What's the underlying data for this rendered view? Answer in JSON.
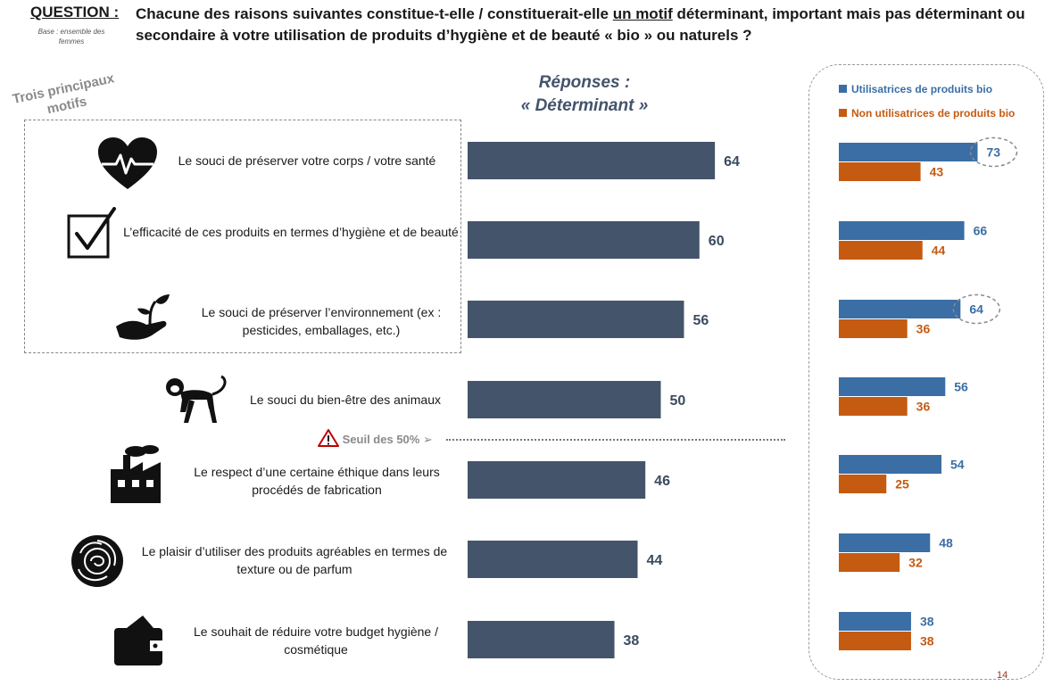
{
  "header": {
    "question_label": "QUESTION :",
    "base_note": "Base : ensemble des femmes",
    "question_part1": "Chacune des raisons suivantes constitue-t-elle / constituerait-elle ",
    "question_underlined": "un motif",
    "question_part2": " déterminant, important mais pas déterminant ou secondaire à votre utilisation de produits d’hygiène et de beauté « bio » ou naturels ?"
  },
  "top3_label": "Trois principaux motifs",
  "responses_title_line1": "Réponses :",
  "responses_title_line2": "« Déterminant »",
  "threshold_label": "Seuil des 50%",
  "threshold_arrow": "➢",
  "page_number": "14",
  "items": [
    {
      "label": "Le souci de préserver votre corps / votre santé",
      "icon": "heart-pulse-icon"
    },
    {
      "label": "L’efficacité de ces produits en termes d’hygiène et de beauté",
      "icon": "checkbox-icon"
    },
    {
      "label": "Le souci de préserver l’environnement (ex : pesticides, emballages, etc.)",
      "icon": "hand-sprout-icon"
    },
    {
      "label": "Le souci du bien-être des animaux",
      "icon": "monkey-icon"
    },
    {
      "label": "Le respect d’une certaine éthique dans leurs procédés de fabrication",
      "icon": "factory-icon"
    },
    {
      "label": "Le plaisir d’utiliser des produits agréables en termes de texture ou de parfum",
      "icon": "rose-icon"
    },
    {
      "label": "Le souhait de réduire votre budget hygiène / cosmétique",
      "icon": "wallet-icon"
    }
  ],
  "chart_data": [
    {
      "type": "bar",
      "orientation": "horizontal",
      "title": "Réponses : « Déterminant »",
      "categories": [
        "Le souci de préserver votre corps / votre santé",
        "L’efficacité de ces produits en termes d’hygiène et de beauté",
        "Le souci de préserver l’environnement (ex : pesticides, emballages, etc.)",
        "Le souci du bien-être des animaux",
        "Le respect d’une certaine éthique dans leurs procédés de fabrication",
        "Le plaisir d’utiliser des produits agréables en termes de texture ou de parfum",
        "Le souhait de réduire votre budget hygiène / cosmétique"
      ],
      "values": [
        64,
        60,
        56,
        50,
        46,
        44,
        38
      ],
      "threshold": 50,
      "color": "#44546a"
    },
    {
      "type": "bar",
      "orientation": "horizontal",
      "categories": [
        "Le souci de préserver votre corps / votre santé",
        "L’efficacité de ces produits en termes d’hygiène et de beauté",
        "Le souci de préserver l’environnement (ex : pesticides, emballages, etc.)",
        "Le souci du bien-être des animaux",
        "Le respect d’une certaine éthique dans leurs procédés de fabrication",
        "Le plaisir d’utiliser des produits agréables en termes de texture ou de parfum",
        "Le souhait de réduire votre budget hygiène / cosmétique"
      ],
      "series": [
        {
          "name": "Utilisatrices de produits bio",
          "values": [
            73,
            66,
            64,
            56,
            54,
            48,
            38
          ],
          "color": "#3a6ea5"
        },
        {
          "name": "Non utilisatrices de produits bio",
          "values": [
            43,
            44,
            36,
            36,
            25,
            32,
            38
          ],
          "color": "#c55a11"
        }
      ],
      "highlighted": [
        {
          "series": 0,
          "index": 0
        },
        {
          "series": 0,
          "index": 2
        }
      ],
      "legend_position": "top"
    }
  ]
}
